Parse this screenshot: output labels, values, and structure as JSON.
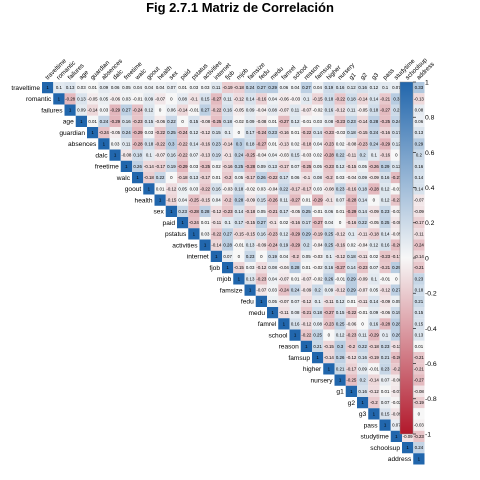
{
  "chart_data": {
    "type": "heatmap",
    "title": "Fig 2.7.1 Matriz de Correlación",
    "layout": "upper-triangle",
    "variables": [
      "traveltime",
      "romantic",
      "failures",
      "age",
      "guardian",
      "absences",
      "dalc",
      "freetime",
      "walc",
      "goout",
      "health",
      "sex",
      "paid",
      "pstatus",
      "activities",
      "internet",
      "fjob",
      "mjob",
      "famsize",
      "fedu",
      "medu",
      "famrel",
      "school",
      "reason",
      "famsup",
      "higher",
      "nursery",
      "g1",
      "g2",
      "g3",
      "pass",
      "studytime",
      "schoolsup",
      "address"
    ],
    "first_row_values": [
      1,
      0.1,
      0.13,
      0.03,
      0.01,
      0.09,
      0.06,
      0.05,
      0.04,
      0.04,
      0.04,
      0.07,
      0.01,
      0.03,
      0.03,
      0.11,
      -0.19,
      -0.18,
      0.24,
      0.27,
      0.29,
      0.06,
      0.04,
      0.27,
      0.04,
      0.19,
      0.16,
      0.12,
      0.16,
      0.12,
      0.1,
      0.07,
      0.03,
      0.33
    ],
    "colorbar": {
      "min": -1,
      "max": 1,
      "ticks": [
        1,
        0.8,
        0.6,
        0.4,
        0.2,
        0,
        -0.2,
        -0.4,
        -0.6,
        -0.8,
        -1
      ],
      "colors": {
        "neg": "#b2182b",
        "mid": "#f7f7f7",
        "pos": "#2166ac"
      }
    }
  }
}
